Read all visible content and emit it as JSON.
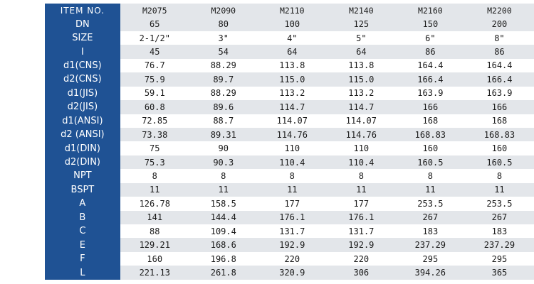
{
  "header": {
    "item_label": "ITEM NO.",
    "models": [
      "M2075",
      "M2090",
      "M2110",
      "M2140",
      "M2160",
      "M2200"
    ]
  },
  "rows": [
    {
      "label": "DN",
      "values": [
        "65",
        "80",
        "100",
        "125",
        "150",
        "200"
      ]
    },
    {
      "label": "SIZE",
      "values": [
        "2-1/2\"",
        "3\"",
        "4\"",
        "5\"",
        "6\"",
        "8\""
      ]
    },
    {
      "label": "I",
      "values": [
        "45",
        "54",
        "64",
        "64",
        "86",
        "86"
      ]
    },
    {
      "label": "d1(CNS)",
      "values": [
        "76.7",
        "88.29",
        "113.8",
        "113.8",
        "164.4",
        "164.4"
      ]
    },
    {
      "label": "d2(CNS)",
      "values": [
        "75.9",
        "89.7",
        "115.0",
        "115.0",
        "166.4",
        "166.4"
      ]
    },
    {
      "label": "d1(JIS)",
      "values": [
        "59.1",
        "88.29",
        "113.2",
        "113.2",
        "163.9",
        "163.9"
      ]
    },
    {
      "label": "d2(JIS)",
      "values": [
        "60.8",
        "89.6",
        "114.7",
        "114.7",
        "166",
        "166"
      ]
    },
    {
      "label": "d1(ANSI)",
      "values": [
        "72.85",
        "88.7",
        "114.07",
        "114.07",
        "168",
        "168"
      ]
    },
    {
      "label": "d2 (ANSI)",
      "values": [
        "73.38",
        "89.31",
        "114.76",
        "114.76",
        "168.83",
        "168.83"
      ]
    },
    {
      "label": "d1(DIN)",
      "values": [
        "75",
        "90",
        "110",
        "110",
        "160",
        "160"
      ]
    },
    {
      "label": "d2(DIN)",
      "values": [
        "75.3",
        "90.3",
        "110.4",
        "110.4",
        "160.5",
        "160.5"
      ]
    },
    {
      "label": "NPT",
      "values": [
        "8",
        "8",
        "8",
        "8",
        "8",
        "8"
      ]
    },
    {
      "label": "BSPT",
      "values": [
        "11",
        "11",
        "11",
        "11",
        "11",
        "11"
      ]
    },
    {
      "label": "A",
      "values": [
        "126.78",
        "158.5",
        "177",
        "177",
        "253.5",
        "253.5"
      ]
    },
    {
      "label": "B",
      "values": [
        "141",
        "144.4",
        "176.1",
        "176.1",
        "267",
        "267"
      ]
    },
    {
      "label": "C",
      "values": [
        "88",
        "109.4",
        "131.7",
        "131.7",
        "183",
        "183"
      ]
    },
    {
      "label": "E",
      "values": [
        "129.21",
        "168.6",
        "192.9",
        "192.9",
        "237.29",
        "237.29"
      ]
    },
    {
      "label": "F",
      "values": [
        "160",
        "196.8",
        "220",
        "220",
        "295",
        "295"
      ]
    },
    {
      "label": "L",
      "values": [
        "221.13",
        "261.8",
        "320.9",
        "306",
        "394.26",
        "365"
      ]
    }
  ],
  "colors": {
    "header_column_bg": "#1f5294",
    "stripe_bg": "#e3e6ea",
    "text": "#1a1a1a"
  }
}
